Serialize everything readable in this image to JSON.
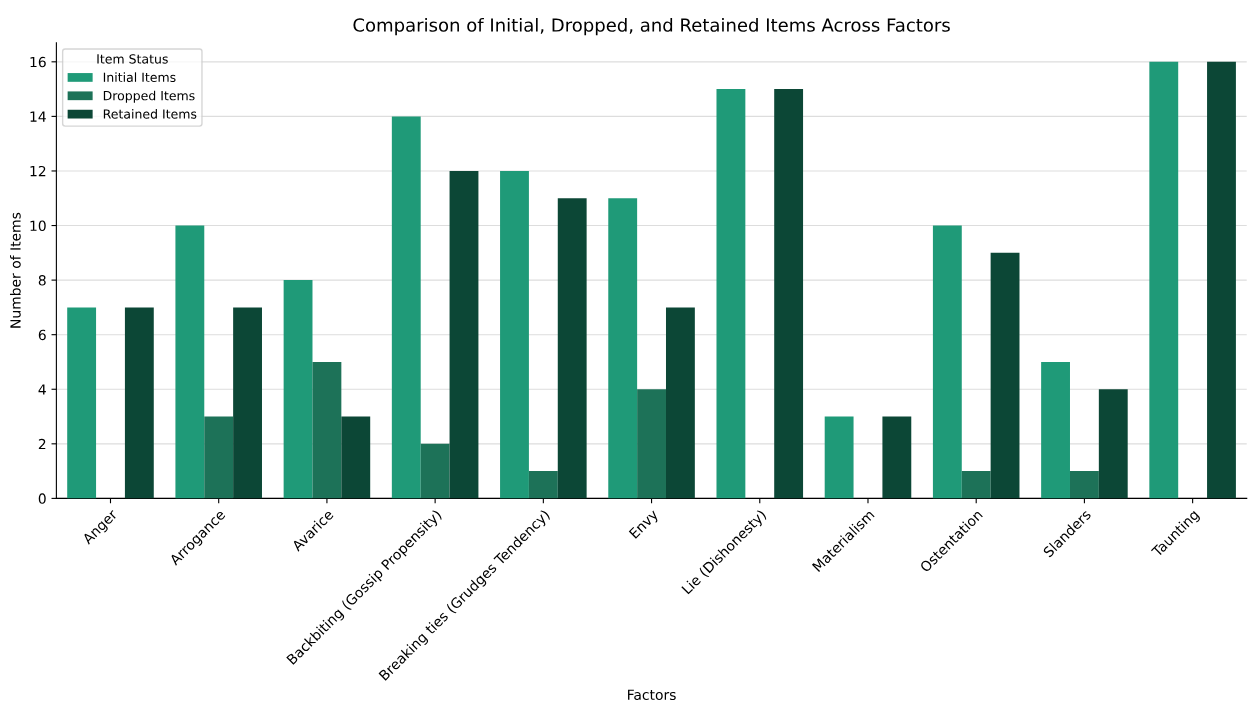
{
  "chart_data": {
    "type": "bar",
    "title": "Comparison of Initial, Dropped, and Retained Items Across Factors",
    "xlabel": "Factors",
    "ylabel": "Number of Items",
    "legend_title": "Item Status",
    "categories": [
      "Anger",
      "Arrogance",
      "Avarice",
      "Backbiting (Gossip Propensity)",
      "Breaking ties (Grudges Tendency)",
      "Envy",
      "Lie (Dishonesty)",
      "Materialism",
      "Ostentation",
      "Slanders",
      "Taunting"
    ],
    "series": [
      {
        "name": "Initial Items",
        "color": "#1f9a78",
        "values": [
          7,
          10,
          8,
          14,
          12,
          11,
          15,
          3,
          10,
          5,
          16
        ]
      },
      {
        "name": "Dropped Items",
        "color": "#1d7258",
        "values": [
          0,
          3,
          5,
          2,
          1,
          4,
          0,
          0,
          1,
          1,
          0
        ]
      },
      {
        "name": "Retained Items",
        "color": "#0c4736",
        "values": [
          7,
          7,
          3,
          12,
          11,
          7,
          15,
          3,
          9,
          4,
          16
        ]
      }
    ],
    "ylim": [
      0,
      16.7
    ],
    "yticks": [
      0,
      2,
      4,
      6,
      8,
      10,
      12,
      14,
      16
    ],
    "grid": "y",
    "legend": "top left"
  }
}
